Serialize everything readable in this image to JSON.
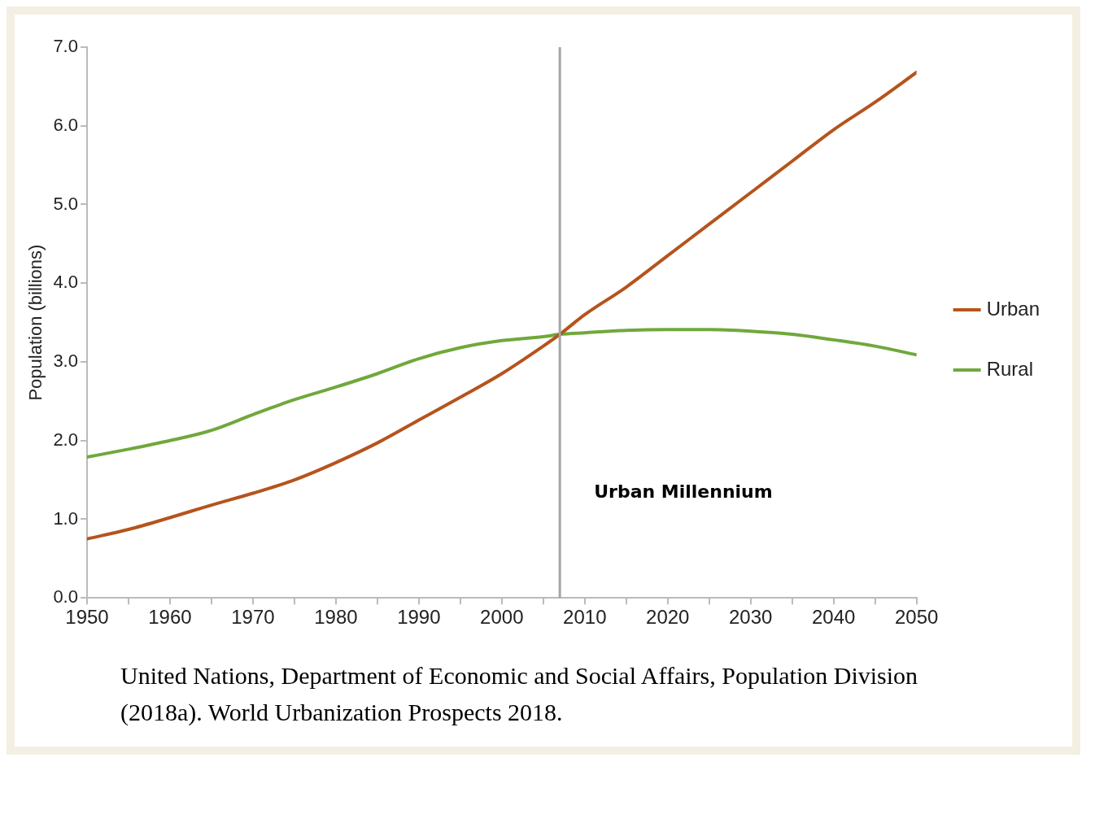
{
  "chart_data": {
    "type": "line",
    "ylabel": "Population (billions)",
    "x": [
      1950,
      1955,
      1960,
      1965,
      1970,
      1975,
      1980,
      1985,
      1990,
      1995,
      2000,
      2005,
      2007,
      2010,
      2015,
      2020,
      2025,
      2030,
      2035,
      2040,
      2045,
      2050
    ],
    "series": [
      {
        "name": "Urban",
        "color": "#b5541c",
        "values": [
          0.75,
          0.87,
          1.02,
          1.18,
          1.33,
          1.5,
          1.72,
          1.97,
          2.26,
          2.55,
          2.85,
          3.2,
          3.35,
          3.6,
          3.95,
          4.35,
          4.75,
          5.15,
          5.55,
          5.95,
          6.3,
          6.68
        ]
      },
      {
        "name": "Rural",
        "color": "#70a83c",
        "values": [
          1.79,
          1.89,
          2.0,
          2.13,
          2.33,
          2.52,
          2.68,
          2.85,
          3.04,
          3.18,
          3.27,
          3.32,
          3.35,
          3.37,
          3.4,
          3.41,
          3.41,
          3.39,
          3.35,
          3.28,
          3.2,
          3.09
        ]
      }
    ],
    "xlim": [
      1950,
      2050
    ],
    "xticks": [
      1950,
      {
        "value": 1955,
        "label": null
      },
      1960,
      {
        "value": 1965,
        "label": null
      },
      1970,
      {
        "value": 1975,
        "label": null
      },
      1980,
      {
        "value": 1985,
        "label": null
      },
      1990,
      {
        "value": 1995,
        "label": null
      },
      2000,
      {
        "value": 2005,
        "label": null
      },
      2010,
      {
        "value": 2015,
        "label": null
      },
      2020,
      {
        "value": 2025,
        "label": null
      },
      2030,
      {
        "value": 2035,
        "label": null
      },
      2040,
      {
        "value": 2045,
        "label": null
      },
      2050
    ],
    "ylim": [
      0,
      7
    ],
    "yticks": [
      {
        "value": 0,
        "label": "0.0"
      },
      {
        "value": 1,
        "label": "1.0"
      },
      {
        "value": 2,
        "label": "2.0"
      },
      {
        "value": 3,
        "label": "3.0"
      },
      {
        "value": 4,
        "label": "4.0"
      },
      {
        "value": 5,
        "label": "5.0"
      },
      {
        "value": 6,
        "label": "6.0"
      },
      {
        "value": 7,
        "label": "7.0"
      }
    ],
    "ref_lines": [
      {
        "axis": "x",
        "value": 2007,
        "label": "Urban Millennium",
        "color": "#a6a6a6"
      }
    ],
    "annotations": [
      "United Nations, Department of Economic and Social Affairs, Population Division (2018a). World Urbanization Prospects 2018."
    ],
    "grid": false,
    "legend": "right",
    "marker": "none",
    "line_style": "solid"
  }
}
